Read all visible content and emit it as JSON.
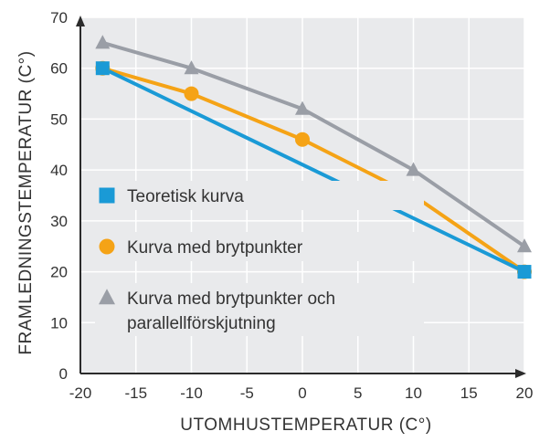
{
  "chart_data": {
    "type": "line",
    "xlabel": "UTOMHUSTEMPERATUR (C°)",
    "ylabel": "FRAMLEDNINGSTEMPERATUR (C°)",
    "xlim": [
      -20,
      20
    ],
    "ylim": [
      0,
      70
    ],
    "xticks": [
      "-20",
      "-15",
      "-10",
      "-5",
      "0",
      "5",
      "10",
      "15",
      "20"
    ],
    "yticks": [
      "0",
      "10",
      "20",
      "30",
      "40",
      "50",
      "60",
      "70"
    ],
    "grid": true,
    "legend_position": "left",
    "series": [
      {
        "name": "Teoretisk kurva",
        "marker": "square",
        "color": "#1a9ad6",
        "x": [
          -18,
          20
        ],
        "y": [
          60,
          20
        ]
      },
      {
        "name": "Kurva med brytpunkter",
        "marker": "circle",
        "color": "#f5a316",
        "x": [
          -18,
          -10,
          0,
          10,
          20
        ],
        "y": [
          60,
          55,
          46,
          35,
          20
        ]
      },
      {
        "name": "Kurva med brytpunkter och parallellförskjutning",
        "legend_lines": [
          "Kurva med brytpunkter och",
          "parallellförskjutning"
        ],
        "marker": "triangle",
        "color": "#9a9ea6",
        "x": [
          -18,
          -10,
          0,
          10,
          20
        ],
        "y": [
          65,
          60,
          52,
          40,
          25
        ]
      }
    ]
  }
}
